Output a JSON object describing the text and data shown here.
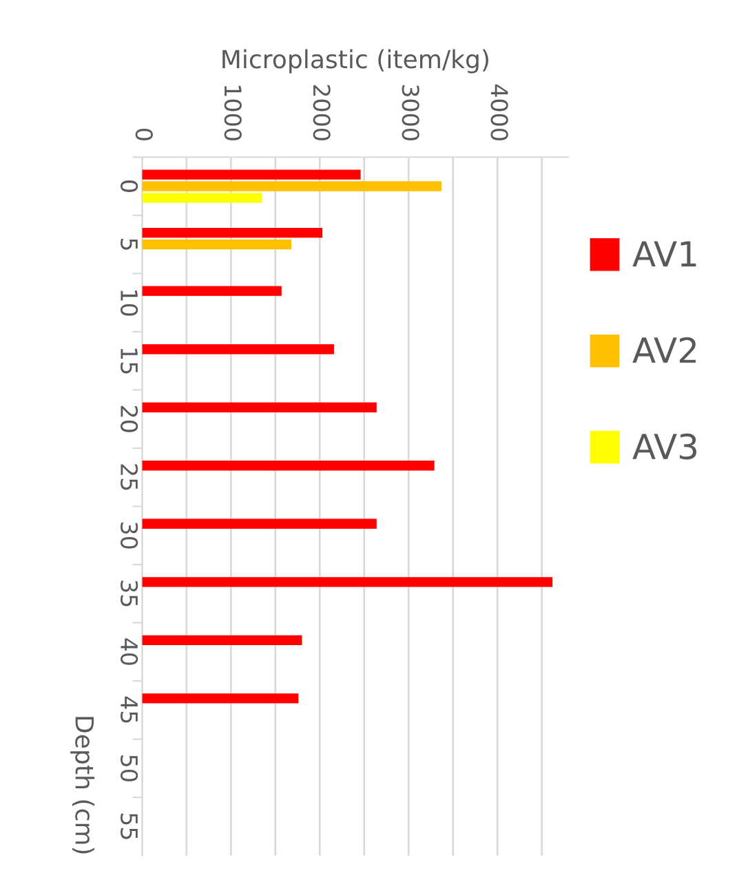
{
  "chart_data": {
    "type": "bar",
    "orientation": "horizontal",
    "xlabel": "Microplastic (item/kg)",
    "ylabel": "Depth (cm)",
    "categories": [
      "0",
      "5",
      "10",
      "15",
      "20",
      "25",
      "30",
      "35",
      "40",
      "45",
      "50",
      "55"
    ],
    "series": [
      {
        "name": "AV1",
        "color": "#ff0000",
        "values": [
          2460,
          2030,
          1570,
          2160,
          2640,
          3290,
          2640,
          4620,
          1800,
          1760,
          null,
          null
        ]
      },
      {
        "name": "AV2",
        "color": "#ffc000",
        "values": [
          3370,
          1680,
          null,
          null,
          null,
          null,
          null,
          null,
          null,
          null,
          null,
          null
        ]
      },
      {
        "name": "AV3",
        "color": "#ffff00",
        "values": [
          1350,
          null,
          null,
          null,
          null,
          null,
          null,
          null,
          null,
          null,
          null,
          null
        ]
      }
    ],
    "xlim": [
      0,
      4800
    ],
    "xticks": [
      0,
      {
        "value": 500,
        "label": null
      },
      1000,
      {
        "value": 1500,
        "label": null
      },
      2000,
      {
        "value": 2500,
        "label": null
      },
      3000,
      {
        "value": 3500,
        "label": null
      },
      4000,
      {
        "value": 4500,
        "label": null
      }
    ],
    "grid": "x",
    "legend": "right"
  }
}
